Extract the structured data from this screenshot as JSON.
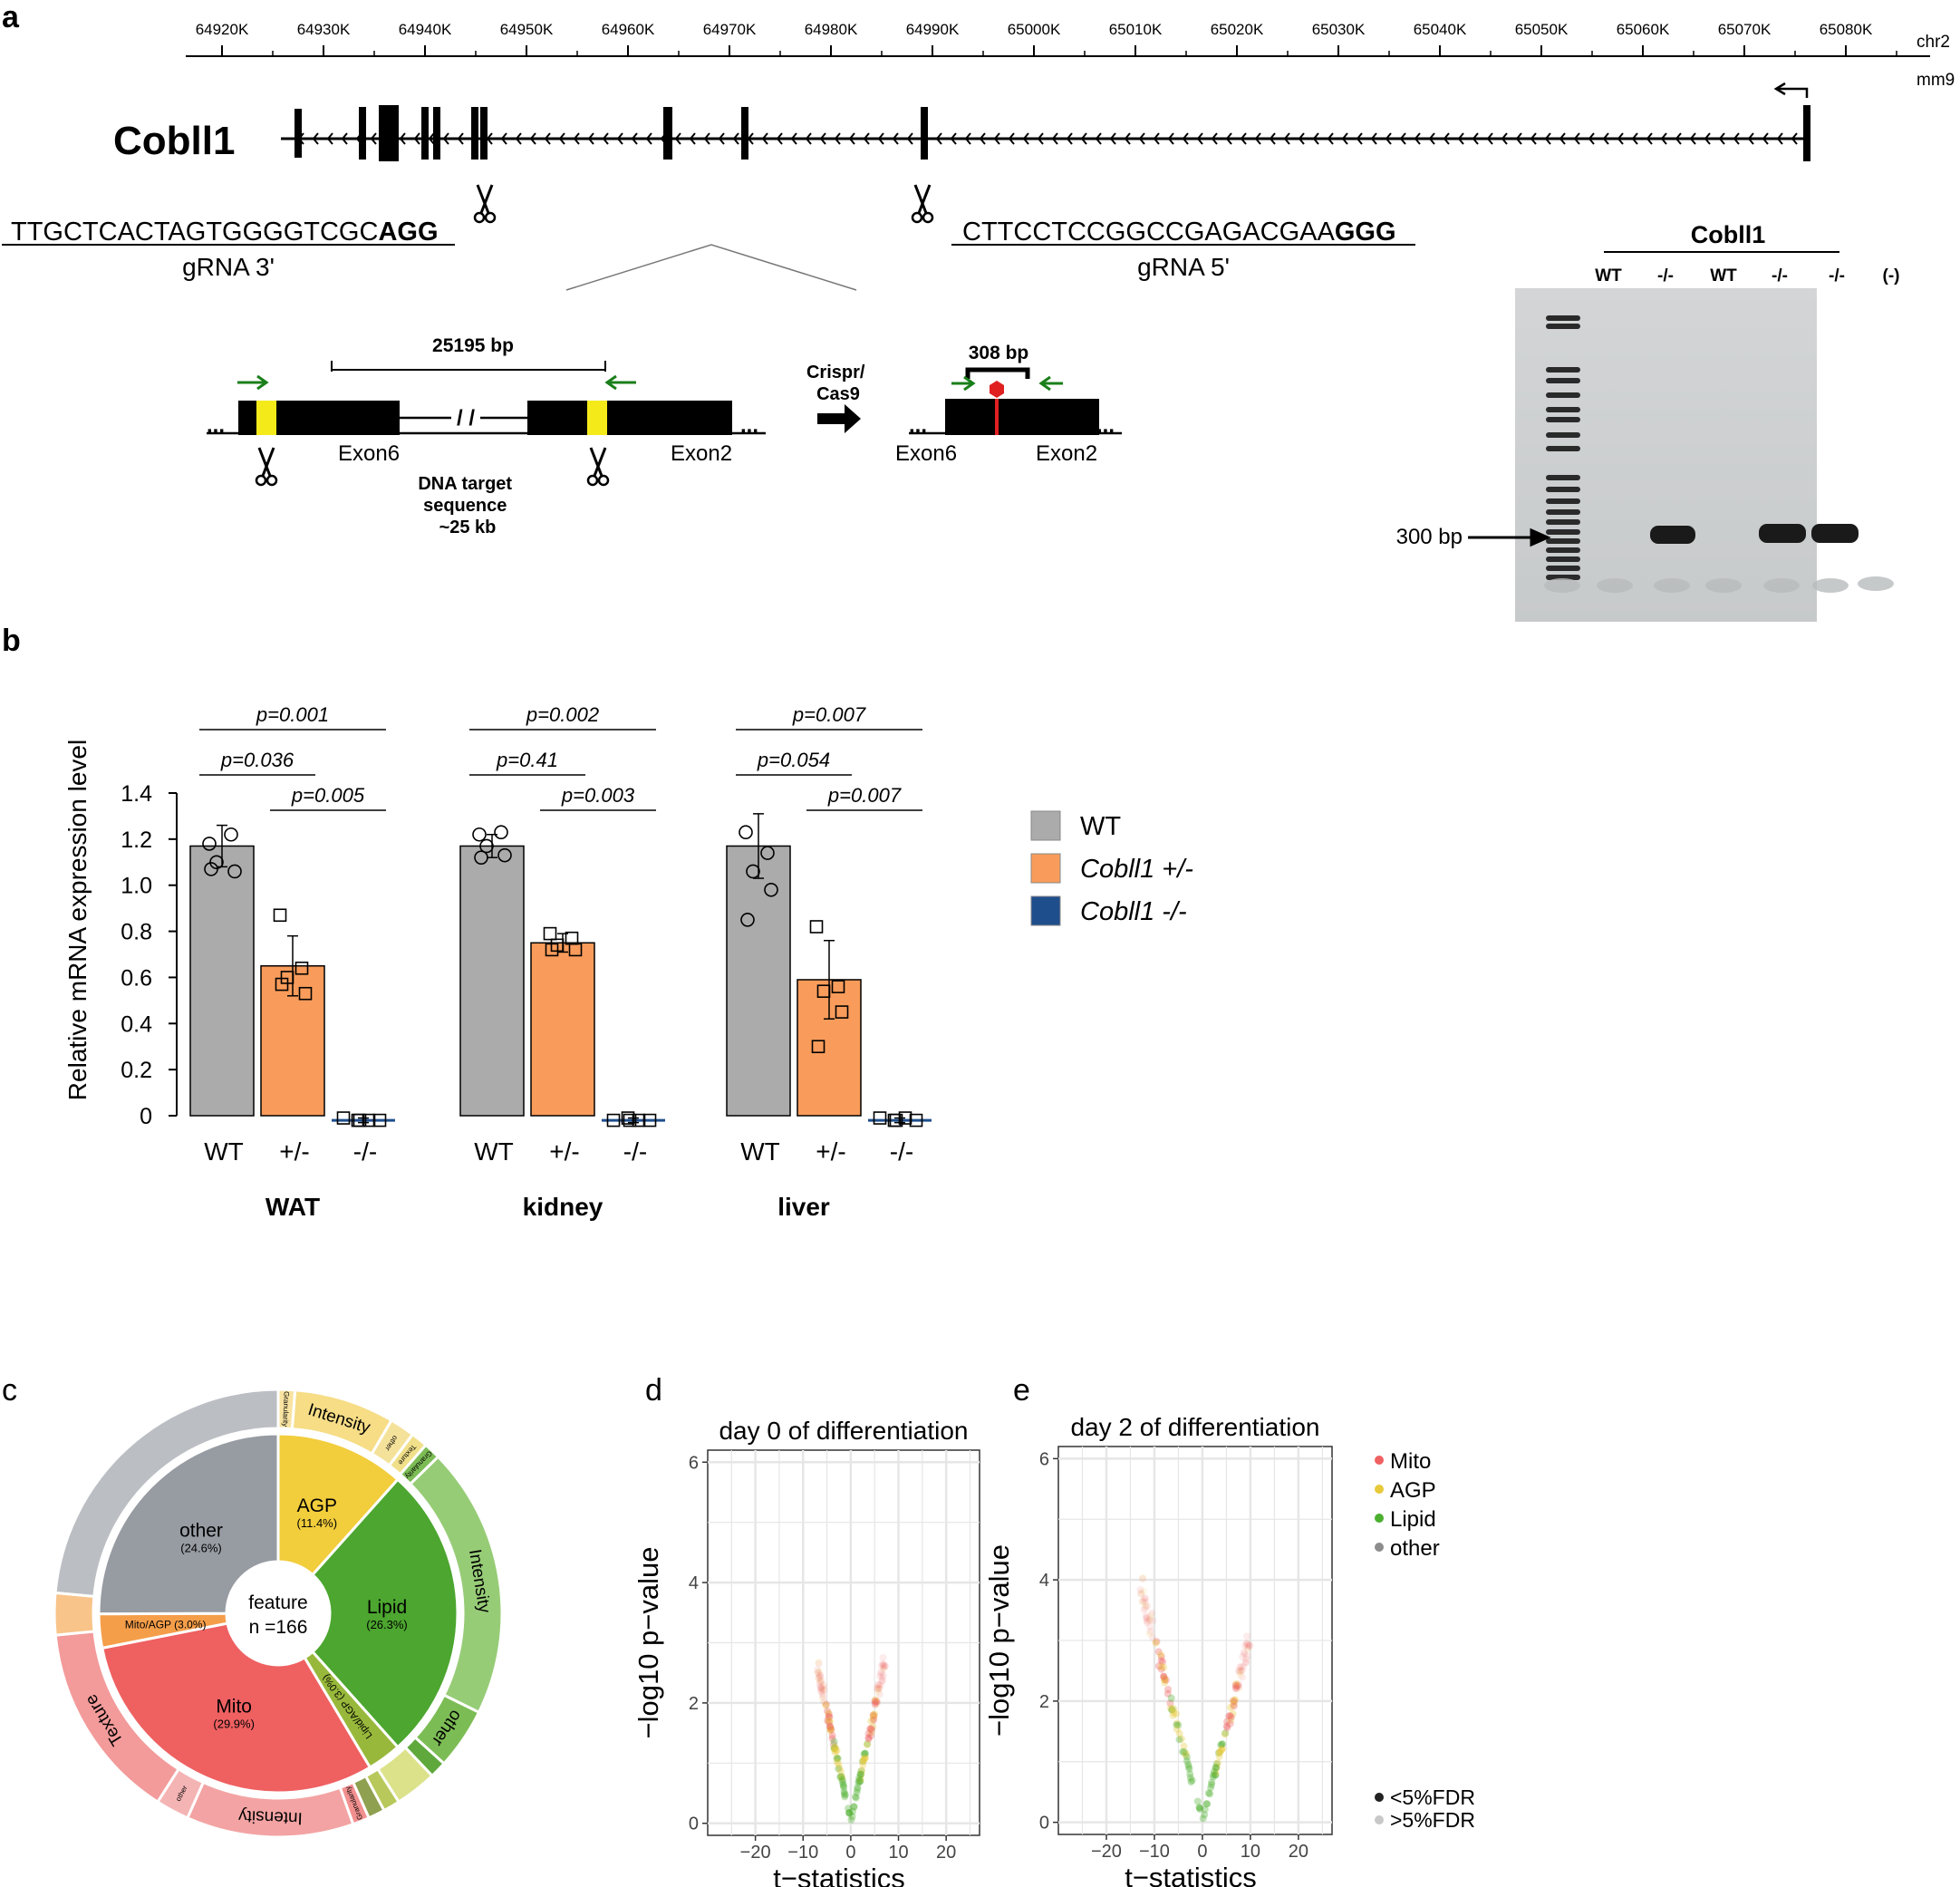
{
  "panel_labels": {
    "a": "a",
    "b": "b",
    "c": "c",
    "d": "d",
    "e": "e"
  },
  "panel_a": {
    "coords": [
      "64920K",
      "64930K",
      "64940K",
      "64950K",
      "64960K",
      "64970K",
      "64980K",
      "64990K",
      "65000K",
      "65010K",
      "65020K",
      "65030K",
      "65040K",
      "65050K",
      "65060K",
      "65070K",
      "65080K"
    ],
    "chrom": "chr2",
    "assembly": "mm9",
    "gene": "Cobll1",
    "grna3_seq": "TTGCTCACTAGTGGGGTCGC",
    "grna3_pam": "AGG",
    "grna3_label": "gRNA 3'",
    "grna5_seq": "CTTCCTCCGGCCGAGACGAA",
    "grna5_pam": "GGG",
    "grna5_label": "gRNA 5'",
    "deletion_size": "25195 bp",
    "product_size": "308 bp",
    "exon6": "Exon6",
    "exon2": "Exon2",
    "target_line1": "DNA target",
    "target_line2": "sequence",
    "target_line3": "~25 kb",
    "crispr_line1": "Crispr/",
    "crispr_line2": "Cas9",
    "dots": "...",
    "break_mark": "/ /",
    "gel_title": "Cobll1",
    "gel_lanes": [
      "WT",
      "-/-",
      "WT",
      "-/-",
      "-/-",
      "(-)"
    ],
    "gel_marker": "300 bp"
  },
  "chart_data": [
    {
      "type": "bar",
      "title": "",
      "ylabel": "Relative mRNA expression level",
      "ylim": [
        0,
        1.4
      ],
      "yticks": [
        "0",
        "0.2",
        "0.4",
        "0.6",
        "0.8",
        "1.0",
        "1.2",
        "1.4"
      ],
      "legend": [
        {
          "label": "WT",
          "color": "#ababab"
        },
        {
          "label": "Cobll1 +/-",
          "color": "#f99c5b"
        },
        {
          "label": "Cobll1 -/-",
          "color": "#1f4e8c"
        }
      ],
      "groups": [
        {
          "name": "WAT",
          "categories": [
            "WT",
            "+/-",
            "-/-"
          ],
          "values": [
            1.17,
            0.65,
            -0.02
          ],
          "errors": [
            0.09,
            0.13,
            0.01
          ],
          "points": [
            [
              1.18,
              1.22,
              1.1,
              1.06,
              1.07
            ],
            [
              0.87,
              0.64,
              0.6,
              0.53,
              0.57
            ],
            [
              -0.01,
              -0.02,
              -0.02,
              -0.02,
              -0.02
            ]
          ],
          "pvalues": [
            {
              "label": "p=0.001",
              "from": 0,
              "to": 2
            },
            {
              "label": "p=0.036",
              "from": 0,
              "to": 1
            },
            {
              "label": "p=0.005",
              "from": 1,
              "to": 2
            }
          ]
        },
        {
          "name": "kidney",
          "categories": [
            "WT",
            "+/-",
            "-/-"
          ],
          "values": [
            1.17,
            0.75,
            -0.02
          ],
          "errors": [
            0.05,
            0.04,
            0.01
          ],
          "points": [
            [
              1.22,
              1.23,
              1.17,
              1.13,
              1.12
            ],
            [
              0.79,
              0.77,
              0.74,
              0.72,
              0.72
            ],
            [
              -0.02,
              -0.02,
              -0.01,
              -0.02,
              -0.02
            ]
          ],
          "pvalues": [
            {
              "label": "p=0.002",
              "from": 0,
              "to": 2
            },
            {
              "label": "p=0.41",
              "from": 0,
              "to": 1
            },
            {
              "label": "p=0.003",
              "from": 1,
              "to": 2
            }
          ]
        },
        {
          "name": "liver",
          "categories": [
            "WT",
            "+/-",
            "-/-"
          ],
          "values": [
            1.17,
            0.59,
            -0.02
          ],
          "errors": [
            0.14,
            0.17,
            0.01
          ],
          "points": [
            [
              1.23,
              1.14,
              1.06,
              0.98,
              0.85
            ],
            [
              0.82,
              0.56,
              0.54,
              0.45,
              0.3
            ],
            [
              -0.01,
              -0.01,
              -0.02,
              -0.02,
              -0.02
            ]
          ],
          "pvalues": [
            {
              "label": "p=0.007",
              "from": 0,
              "to": 2
            },
            {
              "label": "p=0.054",
              "from": 0,
              "to": 1
            },
            {
              "label": "p=0.007",
              "from": 1,
              "to": 2
            }
          ]
        }
      ]
    },
    {
      "type": "pie",
      "title": "",
      "center_line1": "feature",
      "center_line2": "n =166",
      "inner": [
        {
          "label": "AGP",
          "pct": "(11.4%)",
          "value": 11.4,
          "color": "#f2cd3c"
        },
        {
          "label": "Lipid",
          "pct": "(26.3%)",
          "value": 26.3,
          "color": "#4ca62f"
        },
        {
          "label": "Lipid/AGP",
          "pct": "(3.0%)",
          "value": 3.0,
          "color": "#98b83b"
        },
        {
          "label": "Mito",
          "pct": "(29.9%)",
          "value": 29.9,
          "color": "#ef6061"
        },
        {
          "label": "Mito/AGP (3.0%)",
          "pct": "",
          "value": 3.0,
          "color": "#f59e4a"
        },
        {
          "label": "other",
          "pct": "(24.6%)",
          "value": 24.6,
          "color": "#979ba2"
        }
      ],
      "outer": [
        {
          "label": "Granularity",
          "value": 1.2,
          "color": "#f8e3a1"
        },
        {
          "label": "Intensity",
          "value": 7.2,
          "color": "#f6dd86"
        },
        {
          "label": "other",
          "value": 1.8,
          "color": "#f5e29a"
        },
        {
          "label": "Texture",
          "value": 1.2,
          "color": "#f1e08a"
        },
        {
          "label": "Granularity",
          "value": 1.2,
          "color": "#7cbc55"
        },
        {
          "label": "Intensity",
          "value": 19.5,
          "color": "#97cc77"
        },
        {
          "label": "other",
          "value": 4.4,
          "color": "#7cbc55"
        },
        {
          "label": "",
          "value": 1.2,
          "color": "#5ea83c"
        },
        {
          "label": "",
          "value": 3.0,
          "color": "#dbe28a"
        },
        {
          "label": "",
          "value": 1.2,
          "color": "#b8c85a"
        },
        {
          "label": "",
          "value": 1.2,
          "color": "#8fa050"
        },
        {
          "label": "Granularity",
          "value": 1.2,
          "color": "#f2908f"
        },
        {
          "label": "Intensity",
          "value": 12.0,
          "color": "#f3a3a3"
        },
        {
          "label": "other",
          "value": 2.4,
          "color": "#f5b4b4"
        },
        {
          "label": "Texture",
          "value": 14.3,
          "color": "#f39a9a"
        },
        {
          "label": "",
          "value": 3.0,
          "color": "#f8c48a"
        },
        {
          "label": "",
          "value": 23.4,
          "color": "#bbbec3"
        }
      ]
    },
    {
      "type": "scatter",
      "title": "day 0 of differentiation",
      "xlabel": "t−statistics",
      "ylabel": "−log10 p−value",
      "xlim": [
        -30,
        27
      ],
      "ylim": [
        -0.2,
        6.2
      ],
      "xticks": [
        "−20",
        "−10",
        "0",
        "10",
        "20"
      ],
      "yticks": [
        "0",
        "2",
        "4",
        "6"
      ],
      "tmax_left": 7,
      "tmax_right": 7.3,
      "slope": 0.38
    },
    {
      "type": "scatter",
      "title": "day 2 of differentiation",
      "xlabel": "t−statistics",
      "ylabel": "−log10 p−value",
      "xlim": [
        -30,
        27
      ],
      "ylim": [
        -0.2,
        6.2
      ],
      "xticks": [
        "−20",
        "−10",
        "0",
        "10",
        "20"
      ],
      "yticks": [
        "0",
        "2",
        "4",
        "6"
      ],
      "tmax_left": 13,
      "tmax_right": 10,
      "slope": 0.31,
      "legend_colors": [
        {
          "label": "Mito",
          "color": "#ef6061"
        },
        {
          "label": "AGP",
          "color": "#e8c93a"
        },
        {
          "label": "Lipid",
          "color": "#4caf2f"
        },
        {
          "label": "other",
          "color": "#8d8d8d"
        }
      ],
      "legend_fdr": [
        {
          "label": "<5%FDR",
          "color": "#222222"
        },
        {
          "label": ">5%FDR",
          "color": "#c8c8c8"
        }
      ]
    }
  ]
}
